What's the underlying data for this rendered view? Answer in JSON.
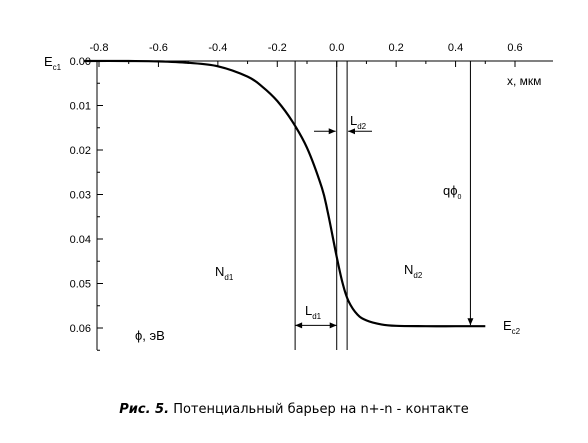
{
  "chart_data": {
    "type": "line",
    "x_axis": {
      "label": "x, мкм",
      "range": [
        -0.85,
        0.7
      ],
      "ticks": [
        -0.8,
        -0.6,
        -0.4,
        -0.2,
        0.0,
        0.2,
        0.4,
        0.6
      ],
      "tick_labels": [
        "-0.8",
        "-0.6",
        "-0.4",
        "-0.2",
        "0.0",
        "0.2",
        "0.4",
        "0.6"
      ],
      "position": "top"
    },
    "y_axis": {
      "label": "ϕ, эВ",
      "range": [
        0.0,
        0.065
      ],
      "inverted": true,
      "ticks": [
        0.0,
        0.01,
        0.02,
        0.03,
        0.04,
        0.05,
        0.06
      ],
      "tick_labels": [
        "0.00",
        "0.01",
        "0.02",
        "0.03",
        "0.04",
        "0.05",
        "0.06"
      ]
    },
    "grid": false,
    "series": [
      {
        "x": [
          -0.85,
          -0.7,
          -0.6,
          -0.5,
          -0.4,
          -0.3,
          -0.25,
          -0.2,
          -0.15,
          -0.1,
          -0.05,
          -0.03,
          0.0,
          0.02,
          0.04,
          0.07,
          0.1,
          0.15,
          0.2,
          0.3,
          0.4,
          0.5
        ],
        "y": [
          0.0,
          0.0,
          0.0001,
          0.0004,
          0.0012,
          0.0035,
          0.0058,
          0.009,
          0.0135,
          0.0195,
          0.0285,
          0.034,
          0.044,
          0.05,
          0.054,
          0.057,
          0.0583,
          0.0592,
          0.0595,
          0.0596,
          0.0596,
          0.0596
        ]
      }
    ],
    "vertical_lines": [
      -0.14,
      0.0,
      0.035
    ],
    "annotations": {
      "ec1": {
        "main": "E",
        "sub": "c1"
      },
      "ec2": {
        "main": "E",
        "sub": "c2"
      },
      "nd1": {
        "main": "N",
        "sub": "d1"
      },
      "nd2": {
        "main": "N",
        "sub": "d2"
      },
      "ld1": {
        "main": "L",
        "sub": "d1"
      },
      "ld2": {
        "main": "L",
        "sub": "d2"
      },
      "qphi": {
        "main": "qϕ",
        "sub": "0"
      }
    },
    "qphi_arrow": {
      "x": 0.45,
      "y_from": 0.0,
      "y_to": 0.0596
    },
    "ld1_arrow": {
      "x_from": -0.14,
      "x_to": 0.0,
      "y": 0.0594
    },
    "ld2_arrow": {
      "x_from": -0.06,
      "x_to": 0.035,
      "y": 0.0158
    }
  },
  "caption": {
    "label": "Рис. 5.",
    "text": "Потенциальный барьер на n+-n - контакте"
  }
}
